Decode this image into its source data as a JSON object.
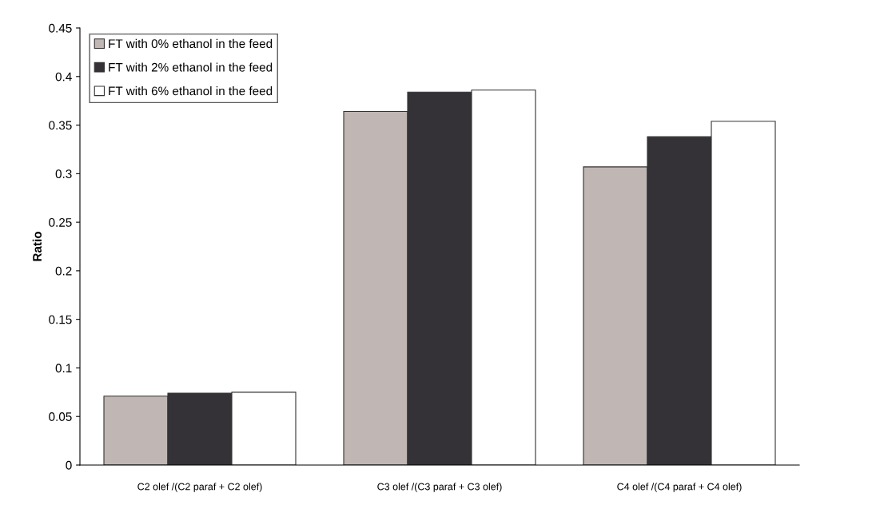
{
  "chart_data": {
    "type": "bar",
    "ylabel": "Ratio",
    "categories": [
      "C2 olef /(C2 paraf + C2 olef)",
      "C3 olef /(C3 paraf + C3 olef)",
      "C4 olef /(C4 paraf + C4 olef)"
    ],
    "series": [
      {
        "name": "FT with 0% ethanol in the feed",
        "color": "#c0b6b4",
        "values": [
          0.071,
          0.364,
          0.307
        ]
      },
      {
        "name": "FT with 2% ethanol in the feed",
        "color": "#343236",
        "values": [
          0.074,
          0.384,
          0.338
        ]
      },
      {
        "name": "FT with 6% ethanol in the feed",
        "color": "#ffffff",
        "values": [
          0.075,
          0.386,
          0.354
        ]
      }
    ],
    "ylim": [
      0,
      0.45
    ],
    "yticks": [
      0,
      0.05,
      0.1,
      0.15,
      0.2,
      0.25,
      0.3,
      0.35,
      0.4,
      0.45
    ],
    "grid": false,
    "legend": "upper left"
  }
}
